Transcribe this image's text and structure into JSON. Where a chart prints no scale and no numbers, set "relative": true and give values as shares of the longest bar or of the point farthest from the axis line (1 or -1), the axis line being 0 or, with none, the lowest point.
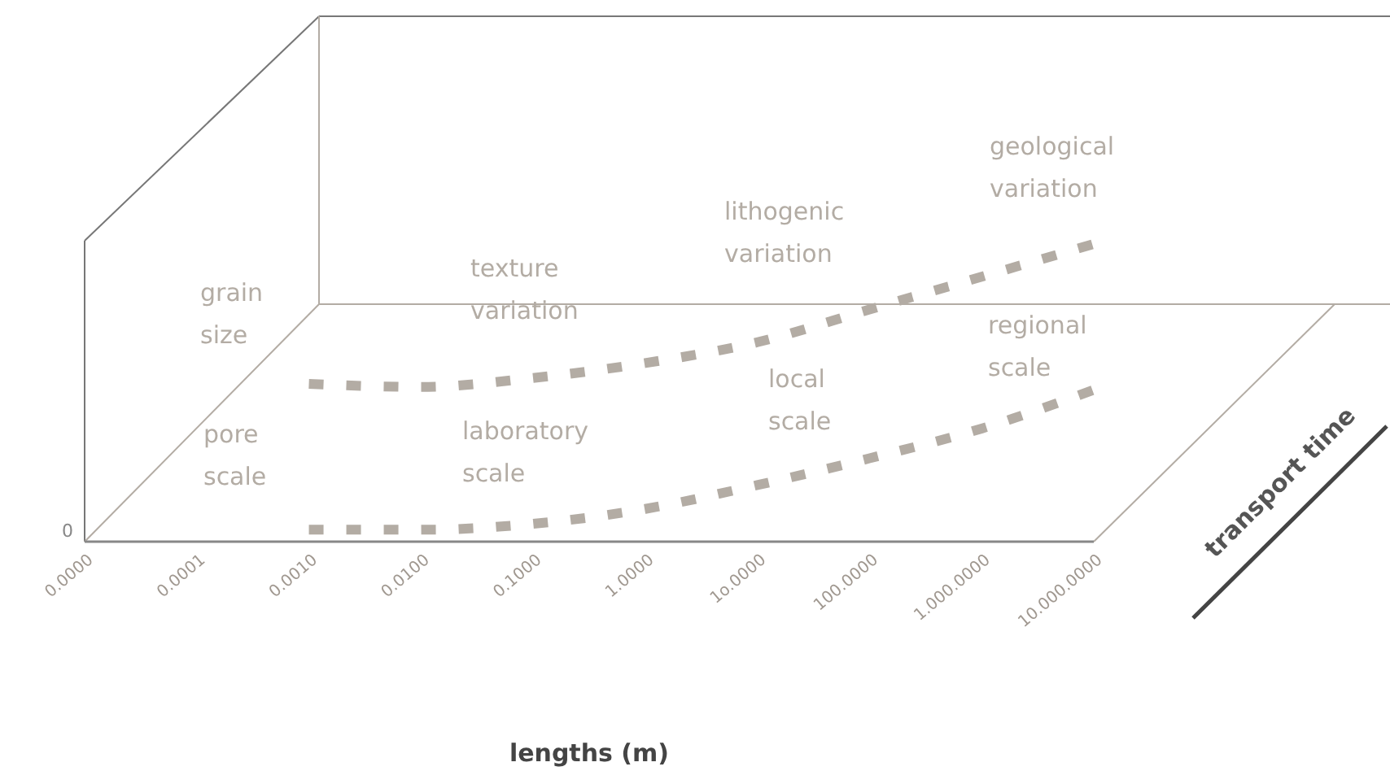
{
  "chart_data": {
    "type": "line",
    "relative": true,
    "xlabel": "lengths (m)",
    "categories": [
      "0.0000",
      "0.0001",
      "0.0010",
      "0.0100",
      "0.1000",
      "1.0000",
      "1o.0000",
      "100.0000",
      "1.000.0000",
      "10.000.0000"
    ],
    "series": [
      {
        "color": "#b3aca4",
        "values": [
          null,
          null,
          0.53,
          0.52,
          0.55,
          0.6,
          0.67,
          0.78,
          0.89,
          1
        ]
      },
      {
        "color": "#b3aca4",
        "values": [
          null,
          null,
          0.04,
          0.04,
          0.06,
          0.11,
          0.19,
          0.28,
          0.38,
          0.51
        ]
      }
    ],
    "line_style": "dashed",
    "marker": "none",
    "annotations": [
      "grain size",
      "texture variation",
      "lithogenic variation",
      "geological variation",
      "pore scale",
      "laboratory scale",
      "local scale",
      "regional scale",
      "0",
      "transport time"
    ]
  }
}
